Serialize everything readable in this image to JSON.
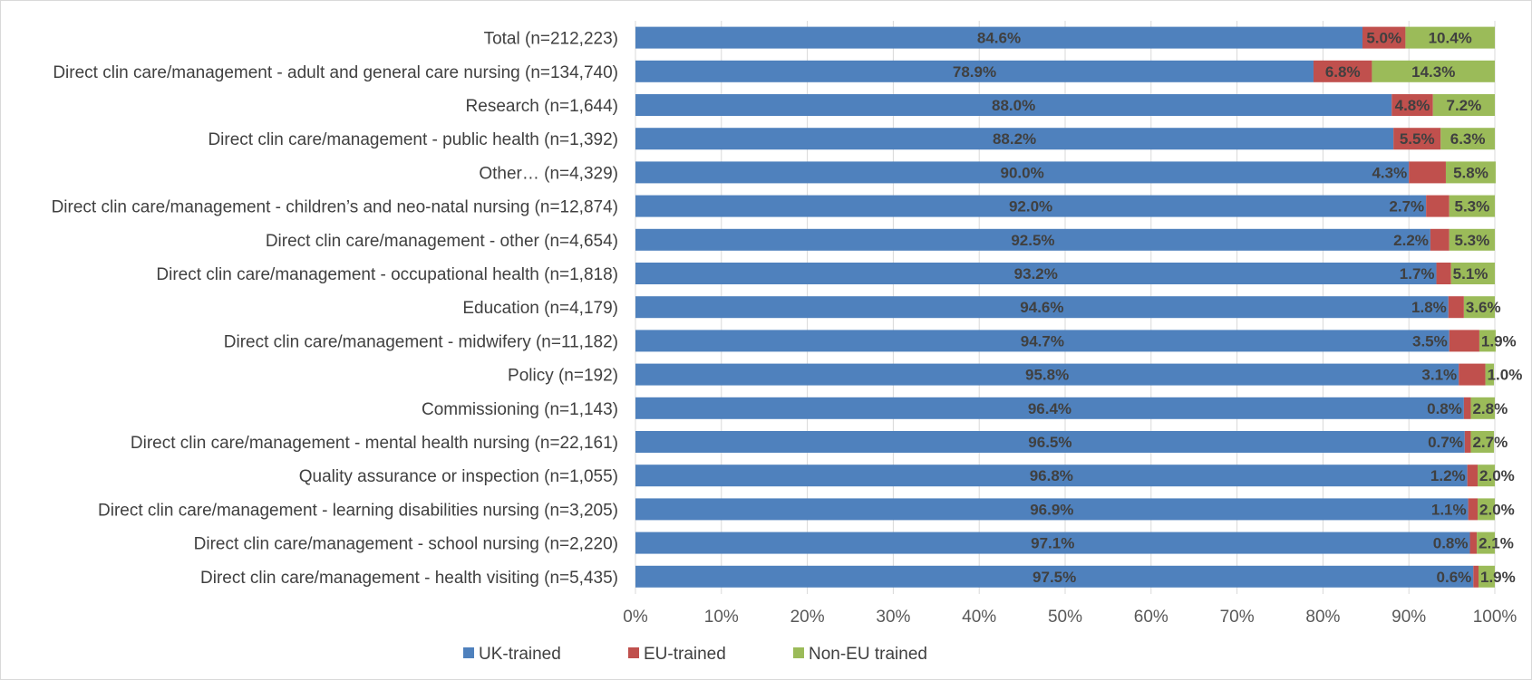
{
  "chart_data": {
    "type": "bar",
    "orientation": "horizontal",
    "stacked": "percent",
    "title": "",
    "xlabel": "",
    "ylabel": "",
    "xlim": [
      0,
      100
    ],
    "x_ticks": [
      "0%",
      "10%",
      "20%",
      "30%",
      "40%",
      "50%",
      "60%",
      "70%",
      "80%",
      "90%",
      "100%"
    ],
    "grid": true,
    "legend_position": "bottom",
    "categories": [
      "Total (n=212,223)",
      "Direct clin care/management - adult and general care nursing (n=134,740)",
      "Research (n=1,644)",
      "Direct clin care/management - public health (n=1,392)",
      "Other… (n=4,329)",
      "Direct clin care/management - children’s and neo-natal nursing (n=12,874)",
      "Direct clin care/management - other (n=4,654)",
      "Direct clin care/management - occupational health (n=1,818)",
      "Education (n=4,179)",
      "Direct clin care/management - midwifery (n=11,182)",
      "Policy (n=192)",
      "Commissioning (n=1,143)",
      "Direct clin care/management - mental health nursing (n=22,161)",
      "Quality assurance or inspection (n=1,055)",
      "Direct clin care/management - learning disabilities nursing (n=3,205)",
      "Direct clin care/management - school nursing (n=2,220)",
      "Direct clin care/management - health visiting (n=5,435)"
    ],
    "series": [
      {
        "name": "UK-trained",
        "color": "#4f81bd",
        "values": [
          84.6,
          78.9,
          88.0,
          88.2,
          90.0,
          92.0,
          92.5,
          93.2,
          94.6,
          94.7,
          95.8,
          96.4,
          96.5,
          96.8,
          96.9,
          97.1,
          97.5
        ],
        "labels": [
          "84.6%",
          "78.9%",
          "88.0%",
          "88.2%",
          "90.0%",
          "92.0%",
          "92.5%",
          "93.2%",
          "94.6%",
          "94.7%",
          "95.8%",
          "96.4%",
          "96.5%",
          "96.8%",
          "96.9%",
          "97.1%",
          "97.5%"
        ]
      },
      {
        "name": "EU-trained",
        "color": "#c0504d",
        "values": [
          5.0,
          6.8,
          4.8,
          5.5,
          4.3,
          2.7,
          2.2,
          1.7,
          1.8,
          3.5,
          3.1,
          0.8,
          0.7,
          1.2,
          1.1,
          0.8,
          0.6
        ],
        "labels": [
          "5.0%",
          "6.8%",
          "4.8%",
          "5.5%",
          "4.3%",
          "2.7%",
          "2.2%",
          "1.7%",
          "1.8%",
          "3.5%",
          "3.1%",
          "0.8%",
          "0.7%",
          "1.2%",
          "1.1%",
          "0.8%",
          "0.6%"
        ]
      },
      {
        "name": "Non-EU trained",
        "color": "#9bbb59",
        "values": [
          10.4,
          14.3,
          7.2,
          6.3,
          5.8,
          5.3,
          5.3,
          5.1,
          3.6,
          1.9,
          1.0,
          2.8,
          2.7,
          2.0,
          2.0,
          2.1,
          1.9
        ],
        "labels": [
          "10.4%",
          "14.3%",
          "7.2%",
          "6.3%",
          "5.8%",
          "5.3%",
          "5.3%",
          "5.1%",
          "3.6%",
          "1.9%",
          "1.0%",
          "2.8%",
          "2.7%",
          "2.0%",
          "2.0%",
          "2.1%",
          "1.9%"
        ]
      }
    ]
  }
}
